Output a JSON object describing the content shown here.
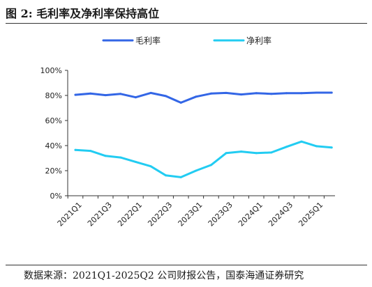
{
  "figure": {
    "title": "图 2:  毛利率及净利率保持高位",
    "source": "数据来源：2021Q1-2025Q2 公司财报公告，国泰海通证券研究"
  },
  "chart_data": {
    "type": "line",
    "categories": [
      "2021Q1",
      "2021Q2",
      "2021Q3",
      "2021Q4",
      "2022Q1",
      "2022Q2",
      "2022Q3",
      "2022Q4",
      "2023Q1",
      "2023Q2",
      "2023Q3",
      "2023Q4",
      "2024Q1",
      "2024Q2",
      "2024Q3",
      "2024Q4",
      "2025Q1",
      "2025Q2"
    ],
    "tick_labels": [
      "2021Q1",
      "2021Q3",
      "2022Q1",
      "2022Q3",
      "2023Q1",
      "2023Q3",
      "2024Q1",
      "2024Q3",
      "2025Q1"
    ],
    "y_ticks": [
      "0%",
      "20%",
      "40%",
      "60%",
      "80%",
      "100%"
    ],
    "ylim": [
      0,
      100
    ],
    "y_unit": "%",
    "grid": false,
    "legend_position": "top",
    "series": [
      {
        "name": "毛利率",
        "color": "#3366e6",
        "values": [
          80.5,
          81.5,
          80.2,
          81.2,
          78.5,
          82.0,
          79.5,
          74.2,
          79.0,
          81.5,
          82.0,
          80.8,
          81.8,
          81.3,
          81.8,
          81.8,
          82.2,
          82.2
        ]
      },
      {
        "name": "净利率",
        "color": "#22ccf2",
        "values": [
          36.5,
          35.8,
          31.8,
          30.5,
          27.0,
          23.5,
          16.2,
          14.8,
          20.0,
          24.5,
          34.0,
          35.2,
          34.0,
          34.5,
          39.0,
          43.2,
          39.5,
          38.5
        ]
      }
    ]
  }
}
